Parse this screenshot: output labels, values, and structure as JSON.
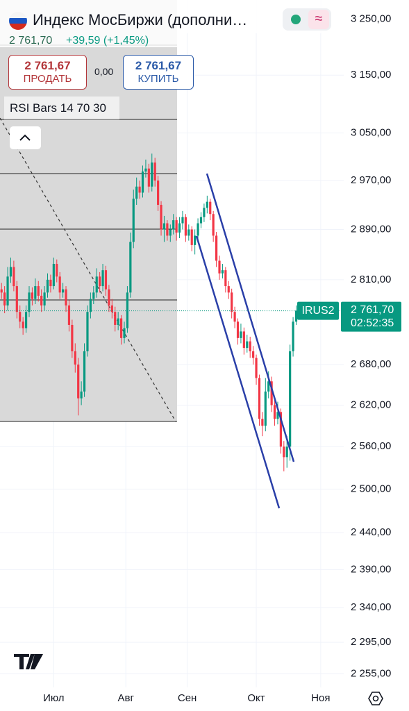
{
  "header": {
    "title": "Индекс МосБиржи (дополни…",
    "quote": "2 761,70",
    "change": "+39,59 (+1,45%)",
    "sell_price": "2 761,67",
    "sell_label": "ПРОДАТЬ",
    "spread": "0,00",
    "buy_price": "2 761,67",
    "buy_label": "КУПИТЬ",
    "indicator": "RSI Bars 14 70 30"
  },
  "chart_data": {
    "type": "candlestick",
    "log_scale": true,
    "grid": true,
    "up_color": "#089981",
    "down_color": "#f23645",
    "xlim": [
      -0.5,
      111.5
    ],
    "xticks": [
      {
        "value": 17,
        "label": "Июл"
      },
      {
        "value": 40.5,
        "label": "Авг"
      },
      {
        "value": 60.5,
        "label": "Сен"
      },
      {
        "value": 83,
        "label": "Окт"
      },
      {
        "value": 104,
        "label": "Ноя"
      }
    ],
    "ylim": [
      2238,
      3285
    ],
    "yticks": [
      {
        "value": 3250,
        "label": "3 250,00"
      },
      {
        "value": 3150,
        "label": "3 150,00"
      },
      {
        "value": 3050,
        "label": "3 050,00"
      },
      {
        "value": 2970,
        "label": "2 970,00"
      },
      {
        "value": 2890,
        "label": "2 890,00"
      },
      {
        "value": 2810,
        "label": "2 810,00"
      },
      {
        "value": 2680,
        "label": "2 680,00"
      },
      {
        "value": 2620,
        "label": "2 620,00"
      },
      {
        "value": 2560,
        "label": "2 560,00"
      },
      {
        "value": 2500,
        "label": "2 500,00"
      },
      {
        "value": 2440,
        "label": "2 440,00"
      },
      {
        "value": 2390,
        "label": "2 390,00"
      },
      {
        "value": 2340,
        "label": "2 340,00"
      },
      {
        "value": 2295,
        "label": "2 295,00"
      },
      {
        "value": 2255,
        "label": "2 255,00"
      }
    ],
    "last_price": {
      "value": 2761.7,
      "label": "2 761,70"
    },
    "symbol_tag": "IRUS2",
    "countdown": "02:52:35",
    "open": [
      2795,
      2790,
      2770,
      2815,
      2830,
      2800,
      2760,
      2745,
      2735,
      2760,
      2790,
      2780,
      2800,
      2785,
      2770,
      2790,
      2810,
      2800,
      2835,
      2815,
      2790,
      2795,
      2770,
      2740,
      2700,
      2680,
      2630,
      2640,
      2700,
      2760,
      2780,
      2790,
      2815,
      2800,
      2825,
      2795,
      2770,
      2760,
      2740,
      2750,
      2720,
      2735,
      2790,
      2870,
      2940,
      2960,
      2950,
      2985,
      2990,
      2960,
      3000,
      2970,
      2930,
      2890,
      2900,
      2880,
      2890,
      2905,
      2885,
      2900,
      2910,
      2880,
      2890,
      2865,
      2880,
      2900,
      2910,
      2925,
      2935,
      2915,
      2880,
      2840,
      2820,
      2825,
      2800,
      2790,
      2760,
      2745,
      2720,
      2730,
      2705,
      2715,
      2700,
      2690,
      2660,
      2600,
      2590,
      2640,
      2655,
      2620,
      2600,
      2610,
      2560,
      2545,
      2560,
      2700,
      2745
    ],
    "high": [
      2805,
      2800,
      2830,
      2845,
      2840,
      2808,
      2770,
      2752,
      2770,
      2800,
      2798,
      2812,
      2808,
      2795,
      2800,
      2820,
      2818,
      2845,
      2842,
      2822,
      2805,
      2800,
      2778,
      2748,
      2712,
      2690,
      2655,
      2712,
      2770,
      2790,
      2800,
      2828,
      2822,
      2835,
      2832,
      2802,
      2780,
      2768,
      2760,
      2755,
      2745,
      2800,
      2885,
      2955,
      2975,
      2970,
      2995,
      3005,
      2998,
      3015,
      3008,
      2978,
      2936,
      2912,
      2905,
      2898,
      2915,
      2910,
      2910,
      2920,
      2915,
      2898,
      2895,
      2890,
      2908,
      2918,
      2932,
      2945,
      2940,
      2920,
      2886,
      2848,
      2835,
      2830,
      2808,
      2796,
      2768,
      2750,
      2742,
      2736,
      2725,
      2722,
      2708,
      2695,
      2665,
      2610,
      2660,
      2670,
      2662,
      2628,
      2625,
      2615,
      2568,
      2575,
      2710,
      2752,
      2770
    ],
    "low": [
      2780,
      2758,
      2762,
      2805,
      2792,
      2750,
      2735,
      2725,
      2728,
      2752,
      2770,
      2772,
      2776,
      2760,
      2762,
      2782,
      2790,
      2795,
      2806,
      2780,
      2782,
      2760,
      2730,
      2690,
      2668,
      2605,
      2620,
      2632,
      2692,
      2750,
      2772,
      2782,
      2790,
      2792,
      2785,
      2760,
      2750,
      2730,
      2732,
      2710,
      2712,
      2728,
      2782,
      2860,
      2930,
      2940,
      2942,
      2975,
      2950,
      2952,
      2960,
      2920,
      2880,
      2870,
      2872,
      2870,
      2882,
      2872,
      2876,
      2890,
      2870,
      2872,
      2855,
      2850,
      2872,
      2892,
      2902,
      2916,
      2905,
      2870,
      2830,
      2810,
      2812,
      2790,
      2780,
      2750,
      2735,
      2710,
      2712,
      2695,
      2698,
      2690,
      2680,
      2650,
      2590,
      2575,
      2582,
      2630,
      2610,
      2590,
      2592,
      2550,
      2525,
      2530,
      2540,
      2692,
      2740
    ],
    "close": [
      2790,
      2770,
      2815,
      2830,
      2800,
      2760,
      2745,
      2735,
      2760,
      2790,
      2780,
      2800,
      2785,
      2770,
      2790,
      2810,
      2800,
      2835,
      2815,
      2790,
      2795,
      2770,
      2740,
      2700,
      2680,
      2630,
      2640,
      2700,
      2760,
      2780,
      2790,
      2815,
      2800,
      2825,
      2795,
      2770,
      2760,
      2740,
      2750,
      2720,
      2735,
      2790,
      2870,
      2940,
      2960,
      2950,
      2985,
      2990,
      2960,
      3000,
      2970,
      2930,
      2890,
      2900,
      2880,
      2890,
      2905,
      2885,
      2900,
      2910,
      2880,
      2890,
      2865,
      2880,
      2900,
      2910,
      2925,
      2935,
      2915,
      2880,
      2840,
      2820,
      2825,
      2800,
      2790,
      2760,
      2745,
      2720,
      2730,
      2705,
      2715,
      2700,
      2690,
      2660,
      2600,
      2590,
      2640,
      2655,
      2620,
      2600,
      2610,
      2560,
      2545,
      2560,
      2700,
      2745,
      2762
    ]
  }
}
